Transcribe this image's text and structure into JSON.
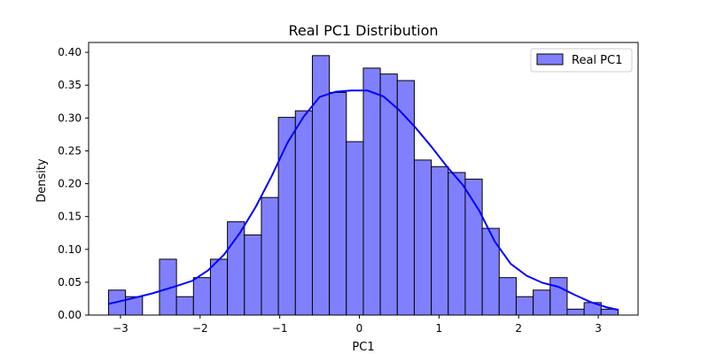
{
  "chart_data": {
    "type": "bar",
    "title": "Real PC1 Distribution",
    "xlabel": "PC1",
    "ylabel": "Density",
    "xlim": [
      -3.4,
      3.5
    ],
    "ylim": [
      0,
      0.415
    ],
    "xticks": [
      -3,
      -2,
      -1,
      0,
      1,
      2,
      3
    ],
    "xtick_labels": [
      "−3",
      "−2",
      "−1",
      "0",
      "1",
      "2",
      "3"
    ],
    "yticks": [
      0.0,
      0.05,
      0.1,
      0.15,
      0.2,
      0.25,
      0.3,
      0.35,
      0.4
    ],
    "ytick_labels": [
      "0.00",
      "0.05",
      "0.10",
      "0.15",
      "0.20",
      "0.25",
      "0.30",
      "0.35",
      "0.40"
    ],
    "grid": false,
    "legend_position": "top-right",
    "series": [
      {
        "name": "Real PC1",
        "color": "#8080ff",
        "edge_color": "#000000",
        "bin_start": -3.15,
        "bin_width": 0.2133,
        "values": [
          0.038,
          0.028,
          0.0,
          0.085,
          0.028,
          0.057,
          0.085,
          0.142,
          0.122,
          0.179,
          0.301,
          0.311,
          0.395,
          0.339,
          0.264,
          0.376,
          0.367,
          0.357,
          0.236,
          0.226,
          0.217,
          0.207,
          0.132,
          0.057,
          0.028,
          0.038,
          0.057,
          0.009,
          0.019,
          0.009
        ]
      }
    ],
    "kde": {
      "color": "#0000ff",
      "x": [
        -3.15,
        -2.9,
        -2.6,
        -2.3,
        -2.1,
        -1.9,
        -1.7,
        -1.5,
        -1.3,
        -1.1,
        -0.9,
        -0.7,
        -0.5,
        -0.3,
        -0.1,
        0.1,
        0.3,
        0.5,
        0.7,
        0.9,
        1.1,
        1.3,
        1.5,
        1.7,
        1.9,
        2.1,
        2.3,
        2.5,
        2.7,
        2.9,
        3.1,
        3.25
      ],
      "y": [
        0.017,
        0.024,
        0.033,
        0.044,
        0.052,
        0.068,
        0.092,
        0.125,
        0.165,
        0.212,
        0.263,
        0.302,
        0.332,
        0.34,
        0.342,
        0.342,
        0.333,
        0.312,
        0.286,
        0.257,
        0.226,
        0.198,
        0.16,
        0.112,
        0.078,
        0.06,
        0.049,
        0.043,
        0.031,
        0.02,
        0.012,
        0.008
      ]
    }
  }
}
